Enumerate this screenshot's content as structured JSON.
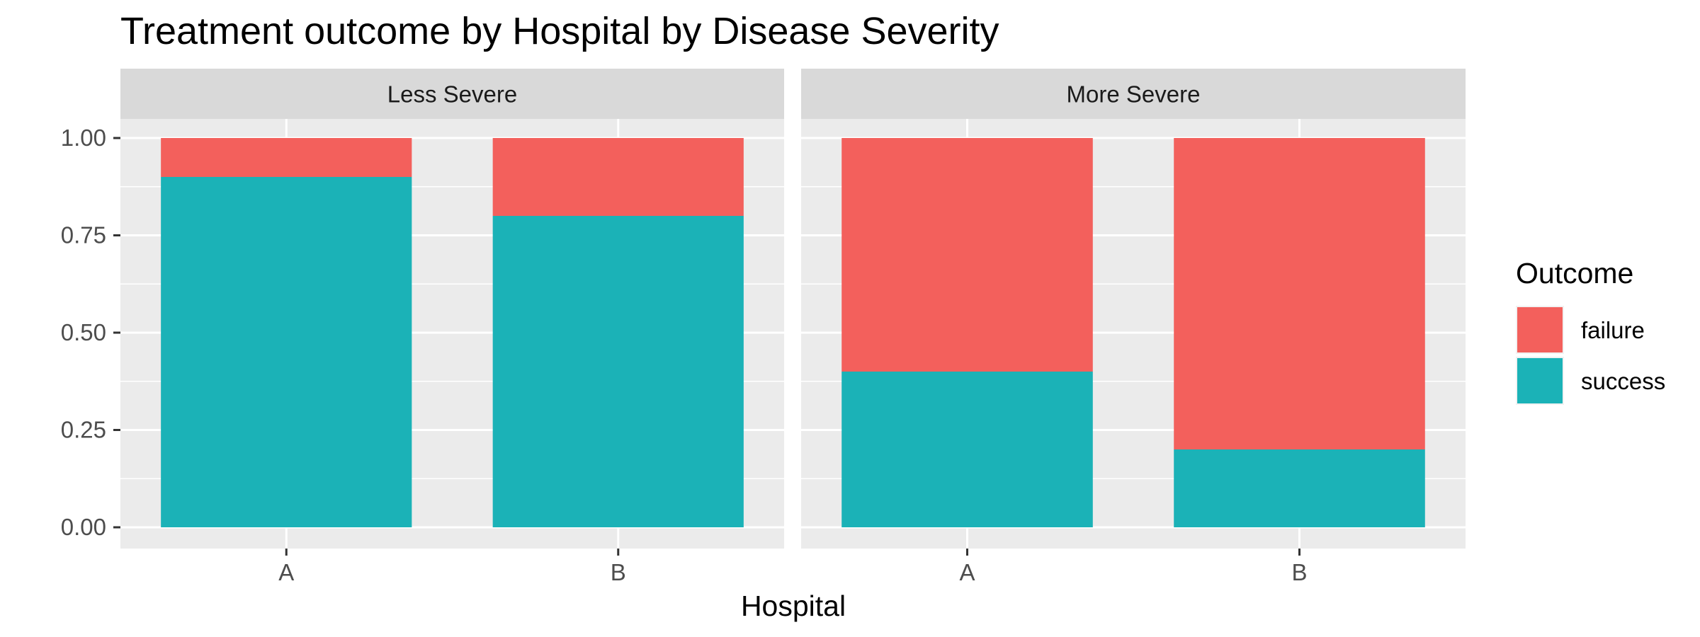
{
  "chart_data": {
    "type": "bar",
    "stacked": true,
    "title": "Treatment outcome by Hospital by Disease Severity",
    "xlabel": "Hospital",
    "ylabel": "",
    "ylim": [
      0,
      1
    ],
    "yticks": [
      "0.00",
      "0.25",
      "0.50",
      "0.75",
      "1.00"
    ],
    "categories": [
      "A",
      "B"
    ],
    "facets": [
      {
        "label": "Less Severe",
        "series": [
          {
            "name": "failure",
            "values": [
              0.1,
              0.2
            ]
          },
          {
            "name": "success",
            "values": [
              0.9,
              0.8
            ]
          }
        ]
      },
      {
        "label": "More Severe",
        "series": [
          {
            "name": "failure",
            "values": [
              0.6,
              0.8
            ]
          },
          {
            "name": "success",
            "values": [
              0.4,
              0.2
            ]
          }
        ]
      }
    ],
    "legend": {
      "title": "Outcome",
      "position": "right",
      "items": [
        {
          "name": "failure",
          "color": "#F8766D"
        },
        {
          "name": "success",
          "color": "#00BFC4"
        }
      ]
    },
    "colors": {
      "failure": "#F3605C",
      "success": "#1BB2B7"
    },
    "panel_background": "#EBEBEB",
    "strip_background": "#D9D9D9",
    "grid": true
  }
}
